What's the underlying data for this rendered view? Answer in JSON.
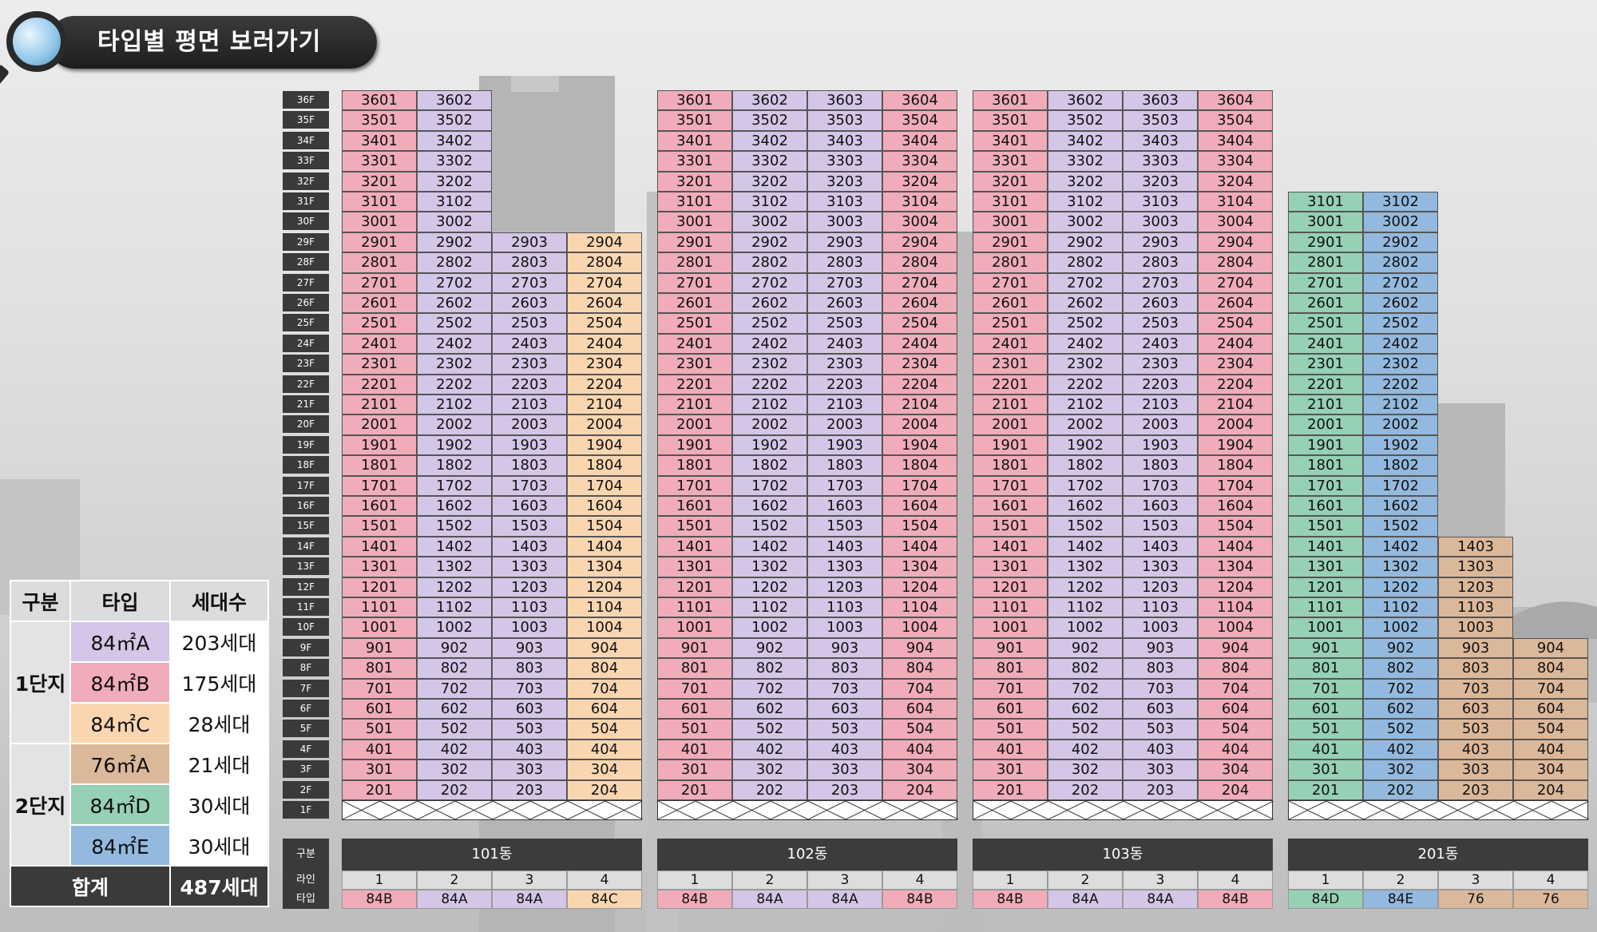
{
  "header": {
    "title": "타입별 평면 보러가기"
  },
  "colors": {
    "84A": "#d4c6e6",
    "84B": "#f0acb9",
    "84C": "#fad6b0",
    "76A": "#dcb89a",
    "84D": "#96d0b5",
    "84E": "#93b9de"
  },
  "floors": [
    "36F",
    "35F",
    "34F",
    "33F",
    "32F",
    "31F",
    "30F",
    "29F",
    "28F",
    "27F",
    "26F",
    "25F",
    "24F",
    "23F",
    "22F",
    "21F",
    "20F",
    "19F",
    "18F",
    "17F",
    "16F",
    "15F",
    "14F",
    "13F",
    "12F",
    "11F",
    "10F",
    "9F",
    "8F",
    "7F",
    "6F",
    "5F",
    "4F",
    "3F",
    "2F",
    "1F"
  ],
  "row_labels": {
    "division": "구분",
    "line": "라인",
    "type": "타입"
  },
  "buildings": [
    {
      "name": "101동",
      "lines": [
        {
          "line": "1",
          "type": "84B",
          "color_key": "84B",
          "top": 36
        },
        {
          "line": "2",
          "type": "84A",
          "color_key": "84A",
          "top": 36
        },
        {
          "line": "3",
          "type": "84A",
          "color_key": "84A",
          "top": 29
        },
        {
          "line": "4",
          "type": "84C",
          "color_key": "84C",
          "top": 29
        }
      ]
    },
    {
      "name": "102동",
      "lines": [
        {
          "line": "1",
          "type": "84B",
          "color_key": "84B",
          "top": 36
        },
        {
          "line": "2",
          "type": "84A",
          "color_key": "84A",
          "top": 36
        },
        {
          "line": "3",
          "type": "84A",
          "color_key": "84A",
          "top": 36
        },
        {
          "line": "4",
          "type": "84B",
          "color_key": "84B",
          "top": 36
        }
      ]
    },
    {
      "name": "103동",
      "lines": [
        {
          "line": "1",
          "type": "84B",
          "color_key": "84B",
          "top": 36
        },
        {
          "line": "2",
          "type": "84A",
          "color_key": "84A",
          "top": 36
        },
        {
          "line": "3",
          "type": "84A",
          "color_key": "84A",
          "top": 36
        },
        {
          "line": "4",
          "type": "84B",
          "color_key": "84B",
          "top": 36
        }
      ]
    },
    {
      "name": "201동",
      "lines": [
        {
          "line": "1",
          "type": "84D",
          "color_key": "84D",
          "top": 31
        },
        {
          "line": "2",
          "type": "84E",
          "color_key": "84E",
          "top": 31
        },
        {
          "line": "3",
          "type": "76",
          "color_key": "76A",
          "top": 14
        },
        {
          "line": "4",
          "type": "76",
          "color_key": "76A",
          "top": 9
        }
      ]
    }
  ],
  "legend": {
    "headers": [
      "구분",
      "타입",
      "세대수"
    ],
    "groups": [
      {
        "name": "1단지",
        "rows": [
          {
            "type": "84㎡A",
            "count": "203세대",
            "color_key": "84A"
          },
          {
            "type": "84㎡B",
            "count": "175세대",
            "color_key": "84B"
          },
          {
            "type": "84㎡C",
            "count": "28세대",
            "color_key": "84C"
          }
        ]
      },
      {
        "name": "2단지",
        "rows": [
          {
            "type": "76㎡A",
            "count": "21세대",
            "color_key": "76A"
          },
          {
            "type": "84㎡D",
            "count": "30세대",
            "color_key": "84D"
          },
          {
            "type": "84㎡E",
            "count": "30세대",
            "color_key": "84E"
          }
        ]
      }
    ],
    "total_label": "합계",
    "total_count": "487세대"
  }
}
